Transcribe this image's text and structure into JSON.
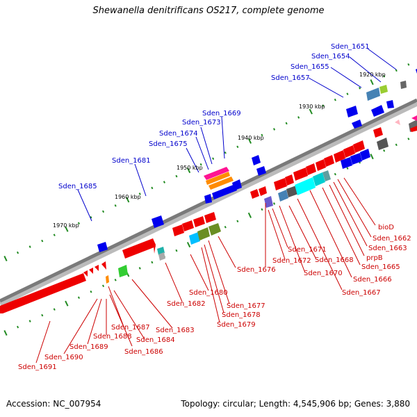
{
  "title": "Shewanella denitrificans OS217, complete genome",
  "footer": {
    "accession": "Accession: NC_007954",
    "info": "Topology: circular; Length: 4,545,906 bp; Genes: 3,880"
  },
  "kbp_labels": [
    "1920 kbp",
    "1930 kbp",
    "1940 kbp",
    "1950 kbp",
    "1960 kbp",
    "1970 kbp"
  ],
  "genes_top": [
    "Sden_1651",
    "Sden_1654",
    "Sden_1655",
    "Sden_1657",
    "Sden_1669",
    "Sden_1673",
    "Sden_1674",
    "Sden_1675",
    "Sden_1681",
    "Sden_1685"
  ],
  "genes_bottom": [
    "bioD",
    "Sden_1662",
    "Sden_1663",
    "prpB",
    "Sden_1665",
    "Sden_1666",
    "Sden_1667",
    "Sden_1668",
    "Sden_1670",
    "Sden_1671",
    "Sden_1672",
    "Sden_1676",
    "Sden_1677",
    "Sden_1678",
    "Sden_1679",
    "Sden_1680",
    "Sden_1682",
    "Sden_1683",
    "Sden_1684",
    "Sden_1686",
    "Sden_1687",
    "Sden_1688",
    "Sden_1689",
    "Sden_1690",
    "Sden_1691"
  ],
  "colors": {
    "backbone": "#7a7a7a",
    "tick": "#228b22",
    "gene_forward": "#0000ee",
    "gene_reverse": "#ee0000",
    "label_blue": "#0000cc",
    "label_red": "#cc0000"
  }
}
